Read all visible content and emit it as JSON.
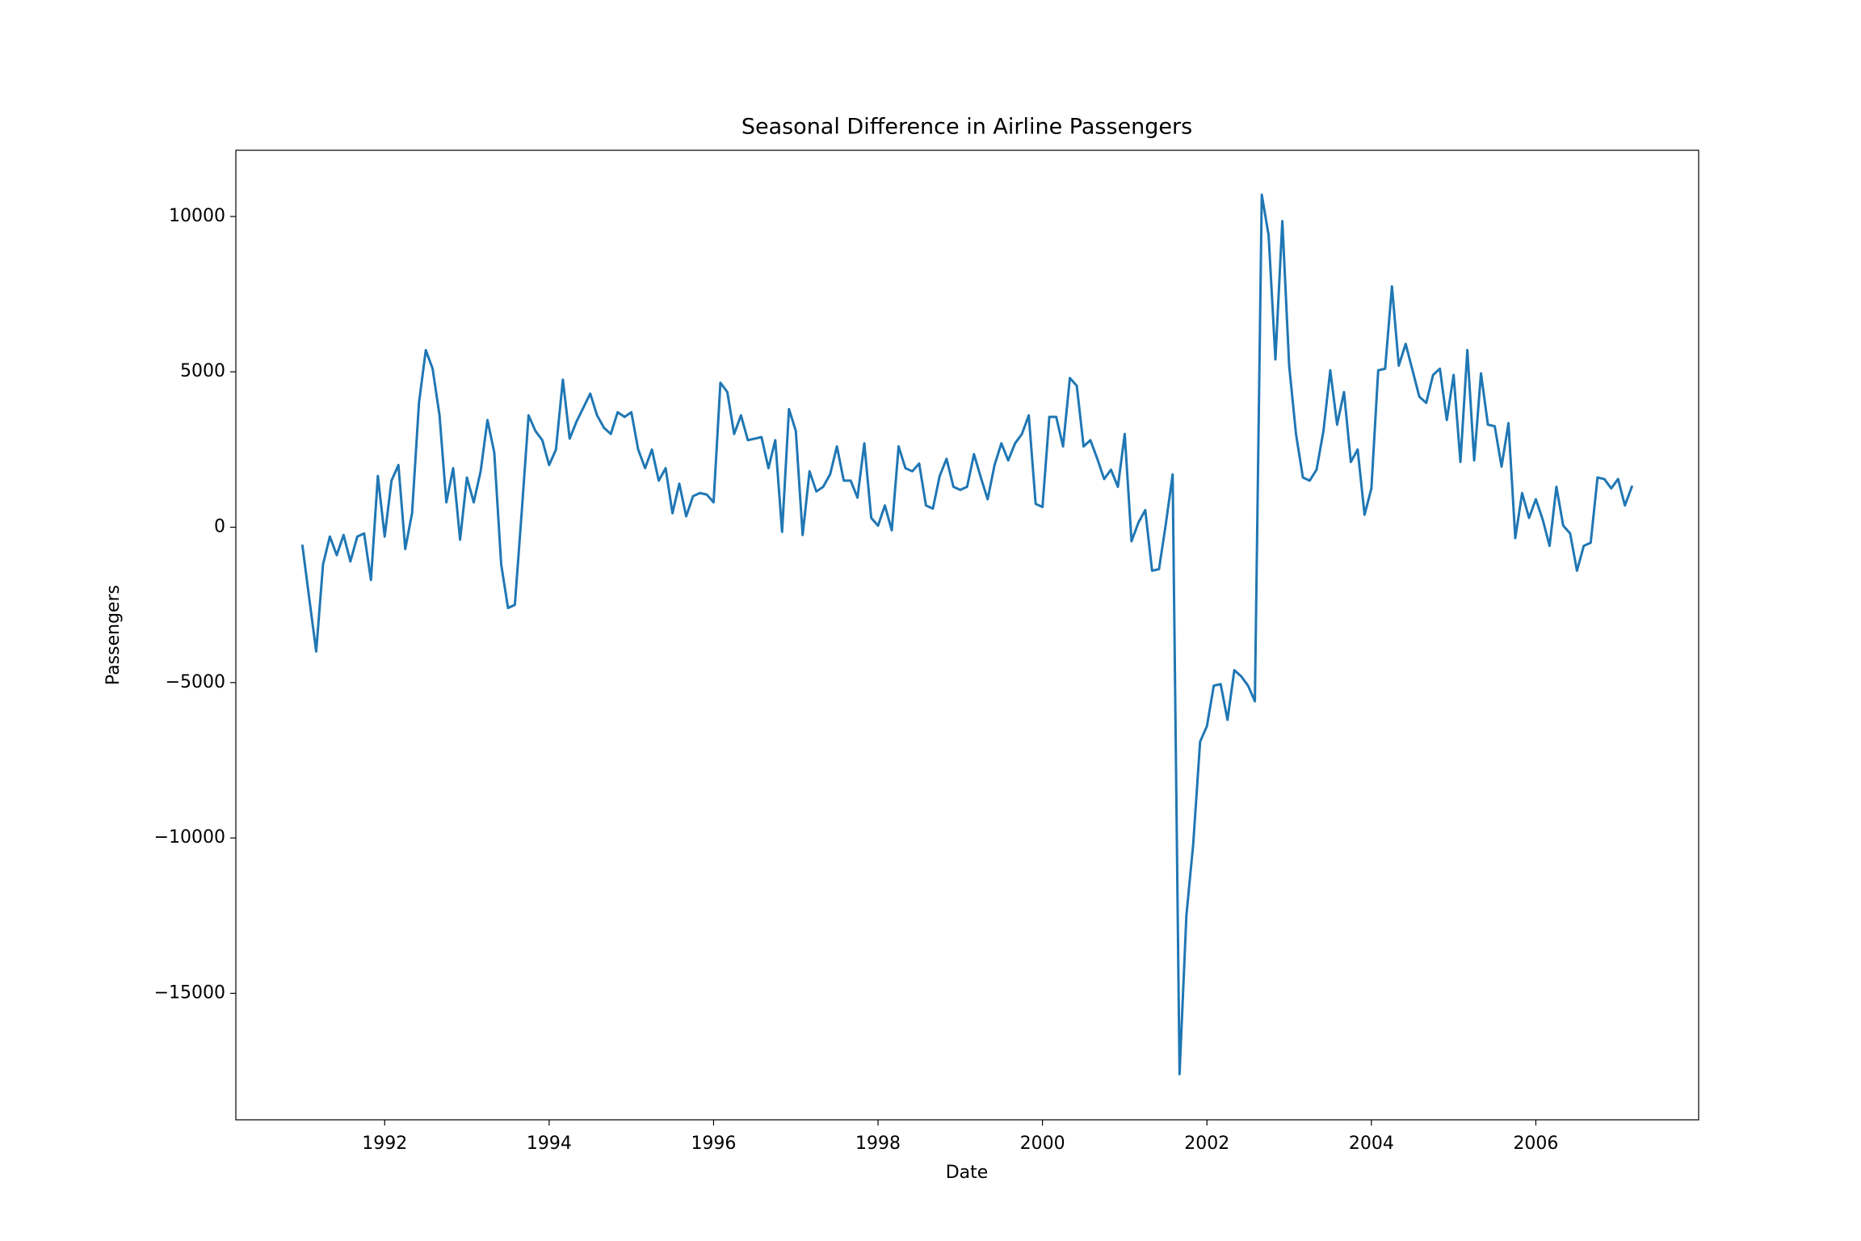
{
  "chart_data": {
    "type": "line",
    "title": "Seasonal Difference in Airline Passengers",
    "x_label": "Date",
    "y_label": "Passengers",
    "color": "#1f77b4",
    "grid": false,
    "xlim": [
      1990.19,
      2007.98
    ],
    "xticks": [
      1992,
      1994,
      1996,
      1998,
      2000,
      2002,
      2004,
      2006
    ],
    "ylim": [
      -19070,
      12130
    ],
    "yticks": [
      {
        "value": -15000,
        "label": "−15000"
      },
      {
        "value": -10000,
        "label": "−10000"
      },
      {
        "value": -5000,
        "label": "−5000"
      },
      0,
      5000,
      10000
    ],
    "x": [
      1991,
      1991.083,
      1991.167,
      1991.25,
      1991.333,
      1991.417,
      1991.5,
      1991.583,
      1991.667,
      1991.75,
      1991.833,
      1991.917,
      1992,
      1992.083,
      1992.167,
      1992.25,
      1992.333,
      1992.417,
      1992.5,
      1992.583,
      1992.667,
      1992.75,
      1992.833,
      1992.917,
      1993,
      1993.083,
      1993.167,
      1993.25,
      1993.333,
      1993.417,
      1993.5,
      1993.583,
      1993.667,
      1993.75,
      1993.833,
      1993.917,
      1994,
      1994.083,
      1994.167,
      1994.25,
      1994.333,
      1994.417,
      1994.5,
      1994.583,
      1994.667,
      1994.75,
      1994.833,
      1994.917,
      1995,
      1995.083,
      1995.167,
      1995.25,
      1995.333,
      1995.417,
      1995.5,
      1995.583,
      1995.667,
      1995.75,
      1995.833,
      1995.917,
      1996,
      1996.083,
      1996.167,
      1996.25,
      1996.333,
      1996.417,
      1996.5,
      1996.583,
      1996.667,
      1996.75,
      1996.833,
      1996.917,
      1997,
      1997.083,
      1997.167,
      1997.25,
      1997.333,
      1997.417,
      1997.5,
      1997.583,
      1997.667,
      1997.75,
      1997.833,
      1997.917,
      1998,
      1998.083,
      1998.167,
      1998.25,
      1998.333,
      1998.417,
      1998.5,
      1998.583,
      1998.667,
      1998.75,
      1998.833,
      1998.917,
      1999,
      1999.083,
      1999.167,
      1999.25,
      1999.333,
      1999.417,
      1999.5,
      1999.583,
      1999.667,
      1999.75,
      1999.833,
      1999.917,
      2000,
      2000.083,
      2000.167,
      2000.25,
      2000.333,
      2000.417,
      2000.5,
      2000.583,
      2000.667,
      2000.75,
      2000.833,
      2000.917,
      2001,
      2001.083,
      2001.167,
      2001.25,
      2001.333,
      2001.417,
      2001.5,
      2001.583,
      2001.667,
      2001.75,
      2001.833,
      2001.917,
      2002,
      2002.083,
      2002.167,
      2002.25,
      2002.333,
      2002.417,
      2002.5,
      2002.583,
      2002.667,
      2002.75,
      2002.833,
      2002.917,
      2003,
      2003.083,
      2003.167,
      2003.25,
      2003.333,
      2003.417,
      2003.5,
      2003.583,
      2003.667,
      2003.75,
      2003.833,
      2003.917,
      2004,
      2004.083,
      2004.167,
      2004.25,
      2004.333,
      2004.417,
      2004.5,
      2004.583,
      2004.667,
      2004.75,
      2004.833,
      2004.917,
      2005,
      2005.083,
      2005.167,
      2005.25,
      2005.333,
      2005.417,
      2005.5,
      2005.583,
      2005.667,
      2005.75,
      2005.833,
      2005.917,
      2006,
      2006.083,
      2006.167,
      2006.25,
      2006.333,
      2006.417,
      2006.5,
      2006.583,
      2006.667,
      2006.75,
      2006.833,
      2006.917,
      2007,
      2007.083,
      2007.167
    ],
    "values": [
      -600,
      -2300,
      -4000,
      -1200,
      -300,
      -900,
      -250,
      -1100,
      -300,
      -200,
      -1700,
      1650,
      -300,
      1500,
      2000,
      -700,
      450,
      4000,
      5700,
      5100,
      3600,
      800,
      1900,
      -400,
      1600,
      800,
      1800,
      3450,
      2400,
      -1200,
      -2600,
      -2500,
      500,
      3600,
      3100,
      2800,
      2000,
      2500,
      4750,
      2850,
      3400,
      3850,
      4300,
      3600,
      3200,
      3000,
      3700,
      3550,
      3700,
      2500,
      1900,
      2500,
      1500,
      1900,
      450,
      1400,
      350,
      1000,
      1100,
      1050,
      800,
      4650,
      4350,
      3000,
      3600,
      2800,
      2850,
      2900,
      1900,
      2800,
      -150,
      3800,
      3100,
      -250,
      1800,
      1150,
      1300,
      1700,
      2600,
      1500,
      1500,
      950,
      2700,
      300,
      50,
      700,
      -100,
      2600,
      1900,
      1800,
      2050,
      700,
      600,
      1650,
      2200,
      1300,
      1200,
      1300,
      2350,
      1600,
      900,
      2000,
      2700,
      2150,
      2700,
      3000,
      3600,
      750,
      650,
      3550,
      3550,
      2600,
      4800,
      4550,
      2600,
      2800,
      2200,
      1550,
      1850,
      1300,
      3000,
      -450,
      150,
      550,
      -1400,
      -1350,
      100,
      1700,
      -17600,
      -12500,
      -10200,
      -6900,
      -6400,
      -5100,
      -5050,
      -6200,
      -4600,
      -4800,
      -5100,
      -5600,
      10700,
      9400,
      5400,
      9850,
      5200,
      3000,
      1600,
      1500,
      1850,
      3100,
      5050,
      3300,
      4350,
      2100,
      2500,
      400,
      1250,
      5050,
      5100,
      7750,
      5200,
      5900,
      5050,
      4200,
      4000,
      4900,
      5100,
      3450,
      4900,
      2100,
      5700,
      2150,
      4950,
      3300,
      3250,
      1950,
      3350,
      -350,
      1100,
      300,
      900,
      250,
      -600,
      1300,
      50,
      -200,
      -1400,
      -600,
      -500,
      1600,
      1550,
      1250,
      1550,
      700,
      1300
    ]
  }
}
